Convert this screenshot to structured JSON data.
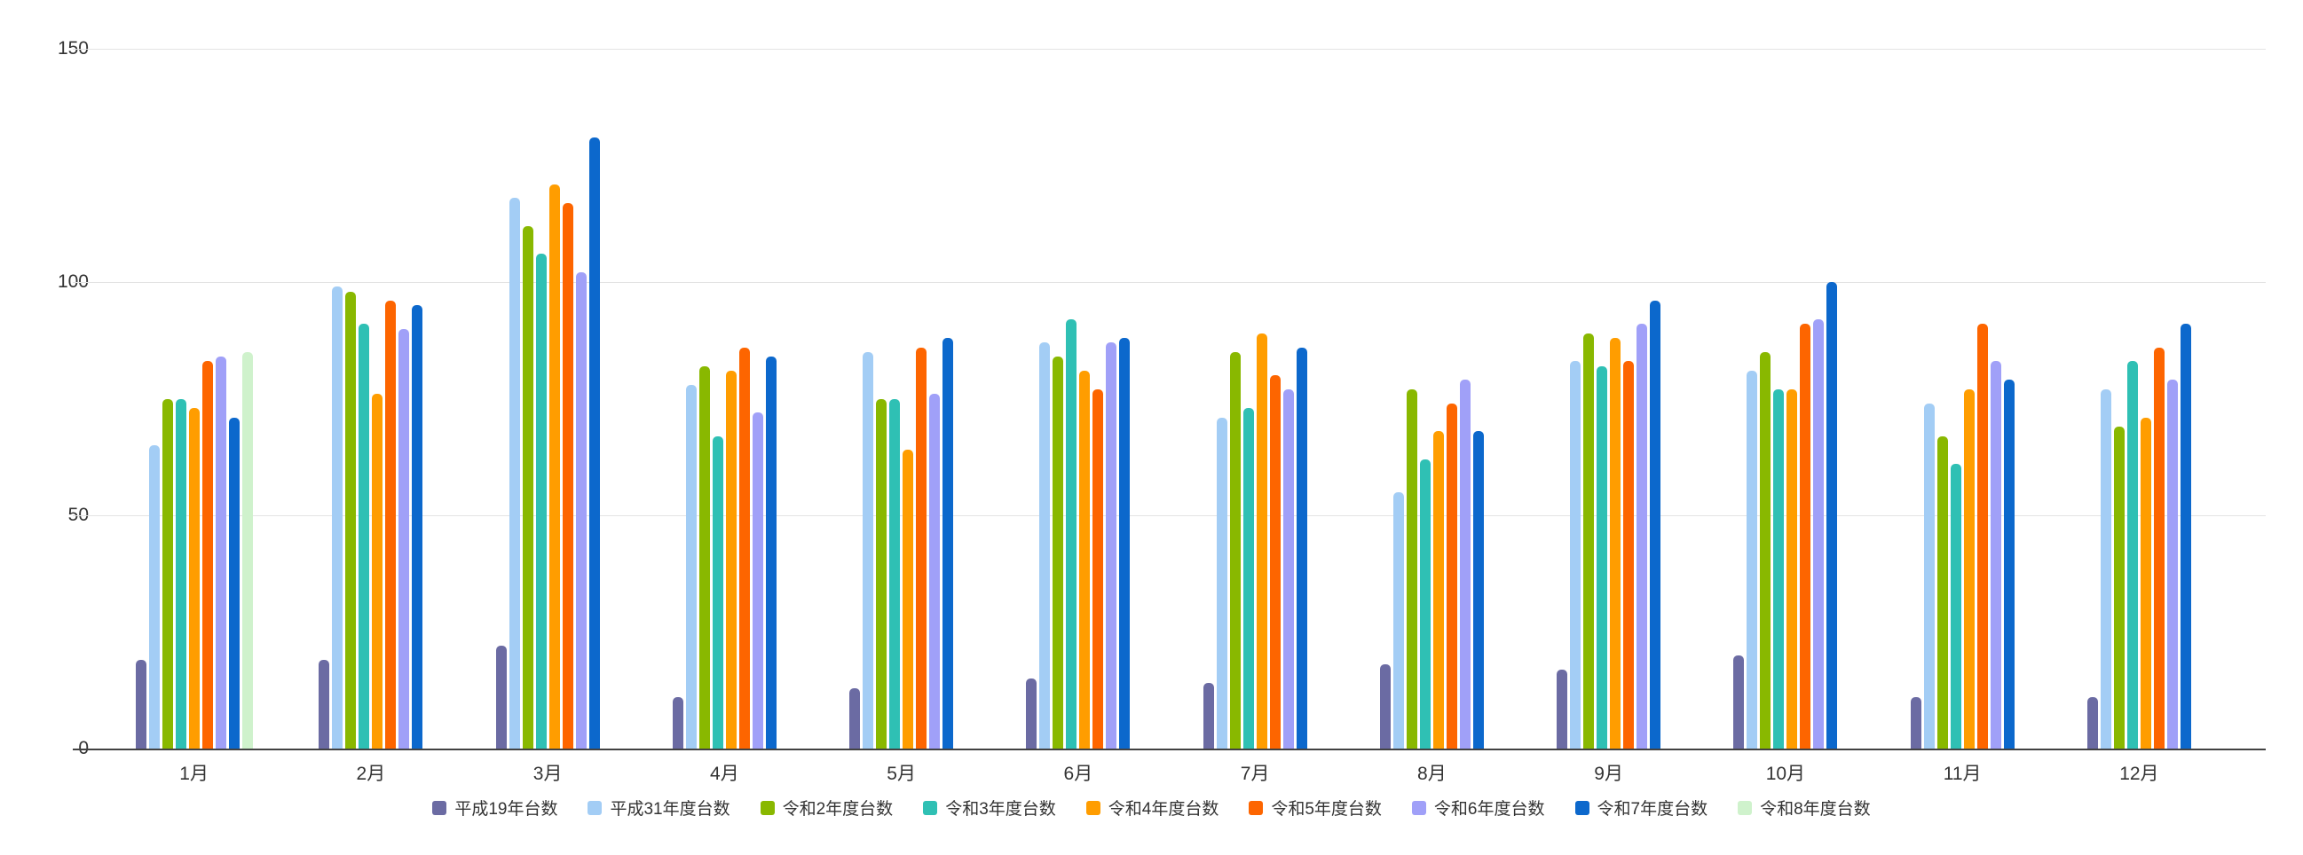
{
  "chart_data": {
    "type": "bar",
    "title": "",
    "xlabel": "",
    "ylabel": "",
    "ylim": [
      0,
      150
    ],
    "yticks": [
      0,
      50,
      100,
      150
    ],
    "grid": true,
    "legend_position": "bottom",
    "background_color": "#ffffff",
    "axis_color": "#424242",
    "gridline_color": "#e3e3e3",
    "label_color": "#333333",
    "categories": [
      "1月",
      "2月",
      "3月",
      "4月",
      "5月",
      "6月",
      "7月",
      "8月",
      "9月",
      "10月",
      "11月",
      "12月"
    ],
    "series": [
      {
        "name": "平成19年台数",
        "color": "#6b6ba3",
        "values": [
          19,
          19,
          22,
          11,
          13,
          15,
          14,
          18,
          17,
          20,
          11,
          11
        ]
      },
      {
        "name": "平成31年度台数",
        "color": "#a3cdf5",
        "values": [
          65,
          99,
          118,
          78,
          85,
          87,
          71,
          55,
          83,
          81,
          74,
          77
        ]
      },
      {
        "name": "令和2年度台数",
        "color": "#89b800",
        "values": [
          75,
          98,
          112,
          82,
          75,
          84,
          85,
          77,
          89,
          85,
          67,
          69
        ]
      },
      {
        "name": "令和3年度台数",
        "color": "#2fc0b4",
        "values": [
          75,
          91,
          106,
          67,
          75,
          92,
          73,
          62,
          82,
          77,
          61,
          83
        ]
      },
      {
        "name": "令和4年度台数",
        "color": "#ff9d00",
        "values": [
          73,
          76,
          121,
          81,
          64,
          81,
          89,
          68,
          88,
          77,
          77,
          71
        ]
      },
      {
        "name": "令和5年度台数",
        "color": "#fd6500",
        "values": [
          83,
          96,
          117,
          86,
          86,
          77,
          80,
          74,
          83,
          91,
          91,
          86
        ]
      },
      {
        "name": "令和6年度台数",
        "color": "#a0a0f8",
        "values": [
          84,
          90,
          102,
          72,
          76,
          87,
          77,
          79,
          91,
          92,
          83,
          79
        ]
      },
      {
        "name": "令和7年度台数",
        "color": "#0c68cc",
        "values": [
          71,
          95,
          131,
          84,
          88,
          88,
          86,
          68,
          96,
          100,
          79,
          91
        ]
      },
      {
        "name": "令和8年度台数",
        "color": "#cff2cc",
        "values": [
          85,
          null,
          null,
          null,
          null,
          null,
          null,
          null,
          null,
          null,
          null,
          null
        ]
      }
    ]
  }
}
